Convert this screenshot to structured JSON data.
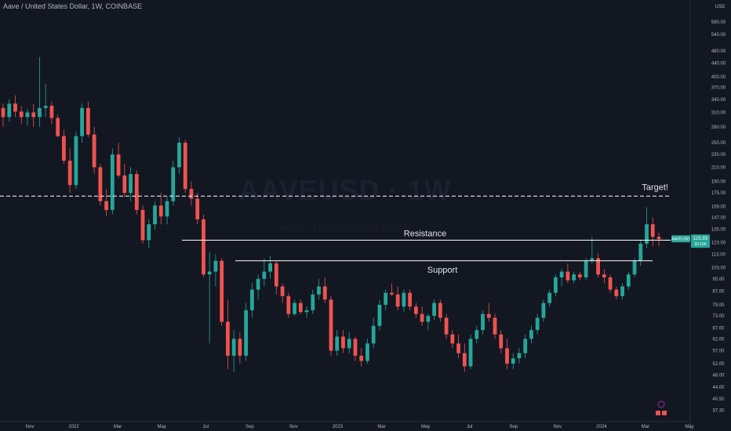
{
  "header": {
    "title": "Aave / United States Dollar, 1W, COINBASE",
    "watermark": "AAVEUSD · 1W",
    "watermark_sub": "Aave / United States Dollar"
  },
  "colors": {
    "background": "#131722",
    "up": "#26a69a",
    "down": "#ef5350",
    "line": "#ffffff",
    "axis_text": "#b2b5be",
    "price_badge": "#26a69a"
  },
  "chart_data": {
    "type": "candlestick",
    "title": "Aave / United States Dollar, 1W, COINBASE",
    "y_axis_label": "USD",
    "y_scale": "log",
    "ylim": [
      36,
      610
    ],
    "y_ticks": [
      37.3,
      40.5,
      44.0,
      48.0,
      52.0,
      57.0,
      62.0,
      67.0,
      73.0,
      79.0,
      87.0,
      95.0,
      103.0,
      113.0,
      123.0,
      135.0,
      147.0,
      159.0,
      175.0,
      190.0,
      210.0,
      230.0,
      250.0,
      280.0,
      310.0,
      340.0,
      370.0,
      400.0,
      440.0,
      480.0,
      540.0,
      590.0
    ],
    "x_ticks": [
      "Nov",
      "2022",
      "Mar",
      "May",
      "Jul",
      "Sep",
      "Nov",
      "2023",
      "Mar",
      "May",
      "Jul",
      "Sep",
      "Nov",
      "2024",
      "Mar",
      "May"
    ],
    "current_price": {
      "symbol": "AAVEUSD",
      "price": "125.93",
      "countdown": "2d 16h"
    },
    "levels": [
      {
        "name": "Target!",
        "price": 171,
        "style": "dashed"
      },
      {
        "name": "Resistance",
        "price": 125,
        "style": "solid"
      },
      {
        "name": "Support",
        "price": 108,
        "style": "solid"
      }
    ],
    "candles": [
      [
        320,
        330,
        280,
        300
      ],
      [
        300,
        340,
        290,
        330
      ],
      [
        330,
        350,
        300,
        312
      ],
      [
        312,
        325,
        285,
        300
      ],
      [
        300,
        318,
        282,
        310
      ],
      [
        310,
        330,
        280,
        300
      ],
      [
        300,
        460,
        280,
        320
      ],
      [
        320,
        380,
        300,
        325
      ],
      [
        325,
        335,
        285,
        298
      ],
      [
        298,
        305,
        260,
        262
      ],
      [
        262,
        275,
        215,
        220
      ],
      [
        220,
        240,
        175,
        185
      ],
      [
        185,
        270,
        180,
        262
      ],
      [
        262,
        330,
        250,
        320
      ],
      [
        320,
        335,
        260,
        265
      ],
      [
        265,
        280,
        200,
        210
      ],
      [
        210,
        215,
        160,
        165
      ],
      [
        165,
        180,
        148,
        155
      ],
      [
        155,
        240,
        150,
        230
      ],
      [
        230,
        250,
        195,
        198
      ],
      [
        198,
        215,
        170,
        175
      ],
      [
        175,
        210,
        165,
        200
      ],
      [
        200,
        205,
        150,
        155
      ],
      [
        155,
        160,
        122,
        125
      ],
      [
        125,
        145,
        118,
        140
      ],
      [
        140,
        165,
        135,
        160
      ],
      [
        160,
        175,
        140,
        148
      ],
      [
        148,
        170,
        140,
        165
      ],
      [
        165,
        220,
        160,
        210
      ],
      [
        210,
        260,
        200,
        250
      ],
      [
        250,
        255,
        175,
        180
      ],
      [
        180,
        190,
        160,
        168
      ],
      [
        168,
        175,
        140,
        145
      ],
      [
        145,
        150,
        96,
        98
      ],
      [
        98,
        115,
        60,
        100
      ],
      [
        100,
        113,
        90,
        108
      ],
      [
        108,
        110,
        68,
        70
      ],
      [
        70,
        82,
        50,
        55
      ],
      [
        55,
        66,
        49,
        62
      ],
      [
        62,
        65,
        52,
        55
      ],
      [
        55,
        80,
        53,
        76
      ],
      [
        76,
        92,
        72,
        88
      ],
      [
        88,
        98,
        82,
        95
      ],
      [
        95,
        110,
        90,
        100
      ],
      [
        100,
        112,
        95,
        106
      ],
      [
        106,
        108,
        85,
        90
      ],
      [
        90,
        92,
        80,
        84
      ],
      [
        84,
        86,
        72,
        74
      ],
      [
        74,
        82,
        73,
        80
      ],
      [
        80,
        82,
        74,
        75
      ],
      [
        75,
        78,
        72,
        76
      ],
      [
        76,
        88,
        74,
        85
      ],
      [
        85,
        95,
        82,
        90
      ],
      [
        90,
        96,
        80,
        82
      ],
      [
        82,
        84,
        55,
        57
      ],
      [
        57,
        66,
        55,
        63
      ],
      [
        63,
        66,
        56,
        58
      ],
      [
        58,
        65,
        56,
        62
      ],
      [
        62,
        63,
        53,
        55
      ],
      [
        55,
        58,
        51,
        53
      ],
      [
        53,
        62,
        52,
        60
      ],
      [
        60,
        72,
        58,
        68
      ],
      [
        68,
        82,
        66,
        79
      ],
      [
        79,
        88,
        76,
        86
      ],
      [
        86,
        92,
        84,
        85
      ],
      [
        85,
        90,
        76,
        78
      ],
      [
        78,
        88,
        75,
        86
      ],
      [
        86,
        88,
        76,
        78
      ],
      [
        78,
        80,
        72,
        74
      ],
      [
        74,
        78,
        68,
        70
      ],
      [
        70,
        74,
        66,
        73
      ],
      [
        73,
        82,
        71,
        80
      ],
      [
        80,
        82,
        70,
        72
      ],
      [
        72,
        74,
        62,
        64
      ],
      [
        64,
        66,
        58,
        60
      ],
      [
        60,
        64,
        54,
        56
      ],
      [
        56,
        60,
        49,
        51
      ],
      [
        51,
        64,
        50,
        62
      ],
      [
        62,
        68,
        60,
        66
      ],
      [
        66,
        76,
        64,
        74
      ],
      [
        74,
        80,
        70,
        72
      ],
      [
        72,
        74,
        62,
        64
      ],
      [
        64,
        66,
        56,
        58
      ],
      [
        58,
        62,
        50,
        52
      ],
      [
        52,
        56,
        50,
        54
      ],
      [
        54,
        58,
        52,
        56
      ],
      [
        56,
        64,
        54,
        62
      ],
      [
        62,
        68,
        60,
        66
      ],
      [
        66,
        74,
        64,
        72
      ],
      [
        72,
        82,
        70,
        80
      ],
      [
        80,
        88,
        78,
        86
      ],
      [
        86,
        98,
        84,
        96
      ],
      [
        96,
        102,
        90,
        100
      ],
      [
        100,
        106,
        92,
        94
      ],
      [
        94,
        100,
        92,
        98
      ],
      [
        98,
        100,
        94,
        96
      ],
      [
        96,
        110,
        94,
        108
      ],
      [
        108,
        128,
        106,
        110
      ],
      [
        110,
        114,
        96,
        98
      ],
      [
        98,
        102,
        92,
        96
      ],
      [
        96,
        98,
        86,
        88
      ],
      [
        88,
        90,
        82,
        84
      ],
      [
        84,
        92,
        82,
        90
      ],
      [
        90,
        100,
        88,
        98
      ],
      [
        98,
        110,
        96,
        108
      ],
      [
        108,
        125,
        104,
        122
      ],
      [
        122,
        158,
        118,
        140
      ],
      [
        140,
        147,
        120,
        128
      ],
      [
        128,
        132,
        120,
        126
      ]
    ]
  }
}
